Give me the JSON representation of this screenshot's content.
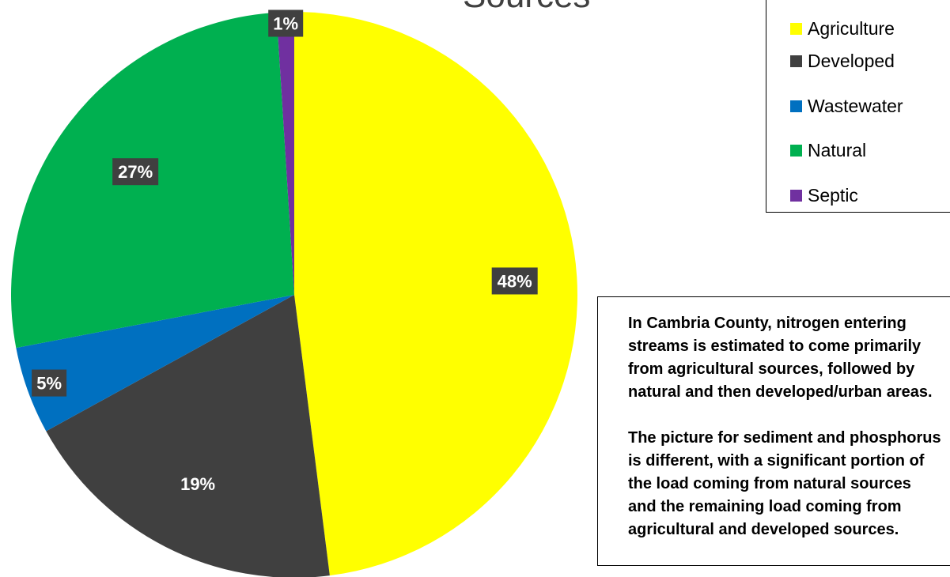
{
  "chart_data": {
    "type": "pie",
    "title": "Sources",
    "categories": [
      "Agriculture",
      "Developed",
      "Wastewater",
      "Natural",
      "Septic"
    ],
    "values": [
      48,
      19,
      5,
      27,
      1
    ],
    "labels": [
      "48%",
      "19%",
      "5%",
      "27%",
      "1%"
    ],
    "colors": [
      "#ffff00",
      "#404040",
      "#0070c0",
      "#00b050",
      "#7030a0"
    ],
    "label_color": "#ffffff",
    "label_bg": "#404040",
    "legend_position": "top-right"
  },
  "legend": {
    "items": [
      {
        "label": "Agriculture",
        "color": "#ffff00"
      },
      {
        "label": "Developed",
        "color": "#404040"
      },
      {
        "label": "Wastewater",
        "color": "#0070c0"
      },
      {
        "label": "Natural",
        "color": "#00b050"
      },
      {
        "label": "Septic",
        "color": "#7030a0"
      }
    ]
  },
  "note": {
    "paragraphs": [
      [
        "In Cambria County, nitrogen entering",
        "streams is estimated to come primarily",
        "from agricultural sources, followed by",
        "natural and then developed/urban areas."
      ],
      [
        "The picture for sediment and phosphorus",
        "is different, with a significant portion of",
        "the load coming from natural sources",
        "and the remaining load coming from",
        "agricultural and developed sources."
      ]
    ]
  }
}
